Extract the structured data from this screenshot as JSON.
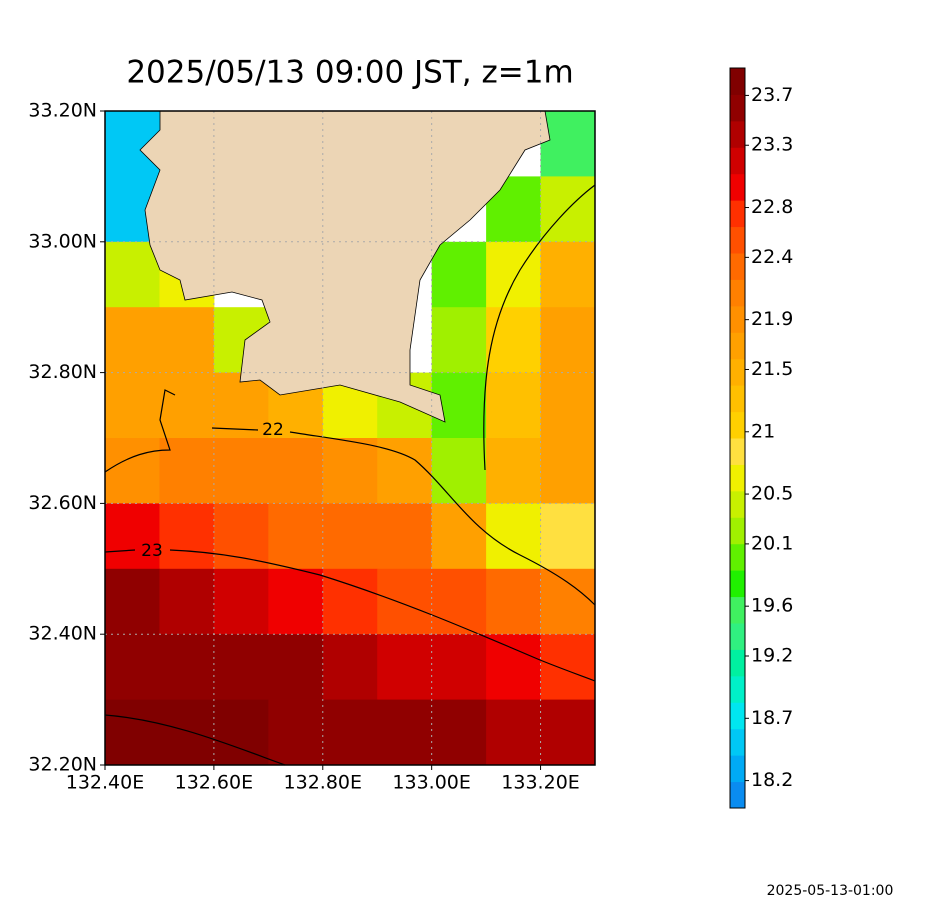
{
  "chart_data": {
    "type": "heatmap",
    "title": "2025/05/13 09:00 JST, z=1m",
    "footer": "2025-05-13-01:00",
    "xlim": [
      132.4,
      133.3
    ],
    "ylim": [
      32.2,
      33.2
    ],
    "xticks": [
      {
        "value": 132.4,
        "label": "132.40E"
      },
      {
        "value": 132.6,
        "label": "132.60E"
      },
      {
        "value": 132.8,
        "label": "132.80E"
      },
      {
        "value": 133.0,
        "label": "133.00E"
      },
      {
        "value": 133.2,
        "label": "133.20E"
      }
    ],
    "yticks": [
      {
        "value": 32.2,
        "label": "32.20N"
      },
      {
        "value": 32.4,
        "label": "32.40N"
      },
      {
        "value": 32.6,
        "label": "32.60N"
      },
      {
        "value": 32.8,
        "label": "32.80N"
      },
      {
        "value": 33.0,
        "label": "33.00N"
      },
      {
        "value": 33.2,
        "label": "33.20N"
      }
    ],
    "grid": true,
    "values": [
      [
        18.5,
        null,
        null,
        null,
        null,
        null,
        null,
        null,
        19.6
      ],
      [
        18.6,
        null,
        null,
        null,
        null,
        null,
        null,
        20.0,
        20.5
      ],
      [
        20.4,
        20.6,
        null,
        null,
        null,
        null,
        20.0,
        20.6,
        21.5
      ],
      [
        21.6,
        21.7,
        20.5,
        null,
        null,
        null,
        20.2,
        21.0,
        21.6
      ],
      [
        21.6,
        21.6,
        21.7,
        21.4,
        20.6,
        20.4,
        19.9,
        21.3,
        21.6
      ],
      [
        22.0,
        22.1,
        22.1,
        22.2,
        22.0,
        21.6,
        20.2,
        21.5,
        21.6
      ],
      [
        23.0,
        22.7,
        22.5,
        22.4,
        22.3,
        22.3,
        21.7,
        20.6,
        20.8
      ],
      [
        23.5,
        23.4,
        23.1,
        23.0,
        22.8,
        22.6,
        22.5,
        22.3,
        22.2
      ],
      [
        23.6,
        23.6,
        23.5,
        23.5,
        23.4,
        23.2,
        23.1,
        22.9,
        22.8
      ],
      [
        23.8,
        23.8,
        23.8,
        23.7,
        23.7,
        23.6,
        23.5,
        23.4,
        23.3
      ]
    ],
    "contours": [
      22,
      23
    ],
    "colorbar": {
      "lim": [
        17.98,
        23.92
      ],
      "ticks": [
        18.2,
        18.7,
        19.2,
        19.6,
        20.1,
        20.5,
        21.0,
        21.5,
        21.9,
        22.4,
        22.8,
        23.3,
        23.7
      ],
      "colors": [
        "#0a8cf0",
        "#00aaf5",
        "#00c8f5",
        "#00e6f0",
        "#00f0c8",
        "#00f0a0",
        "#30f080",
        "#40f060",
        "#20f000",
        "#60f000",
        "#a0f000",
        "#c8f000",
        "#f0f000",
        "#ffe040",
        "#ffd000",
        "#ffc000",
        "#ffb000",
        "#ffa000",
        "#ff9000",
        "#ff8000",
        "#ff6a00",
        "#ff5000",
        "#ff3000",
        "#f00000",
        "#d00000",
        "#b00000",
        "#900000",
        "#800000"
      ]
    }
  }
}
